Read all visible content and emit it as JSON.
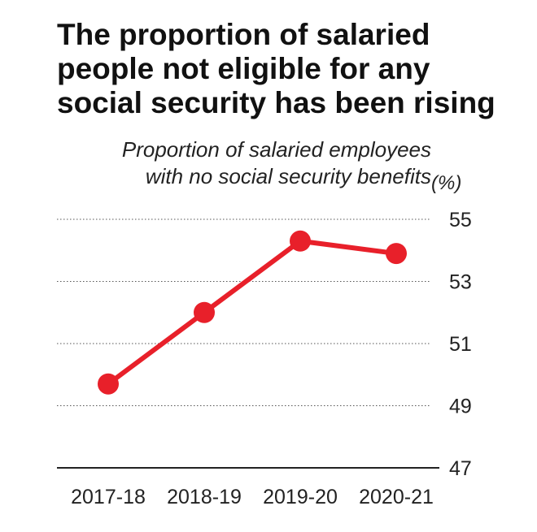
{
  "chart_data": {
    "type": "line",
    "title_lines": [
      "The proportion of salaried",
      "people not eligible for any",
      "social security has been rising"
    ],
    "subtitle_lines": [
      "Proportion of salaried employees",
      "with no social security benefits"
    ],
    "unit": "(%)",
    "categories": [
      "2017-18",
      "2018-19",
      "2019-20",
      "2020-21"
    ],
    "series": [
      {
        "values": [
          49.7,
          52.0,
          54.3,
          53.9
        ]
      }
    ],
    "y_ticks": [
      "55",
      "53",
      "51",
      "49",
      "47"
    ],
    "ylim": [
      47,
      55
    ],
    "grid": "dotted horizontal",
    "line_color": "#e8202a"
  }
}
